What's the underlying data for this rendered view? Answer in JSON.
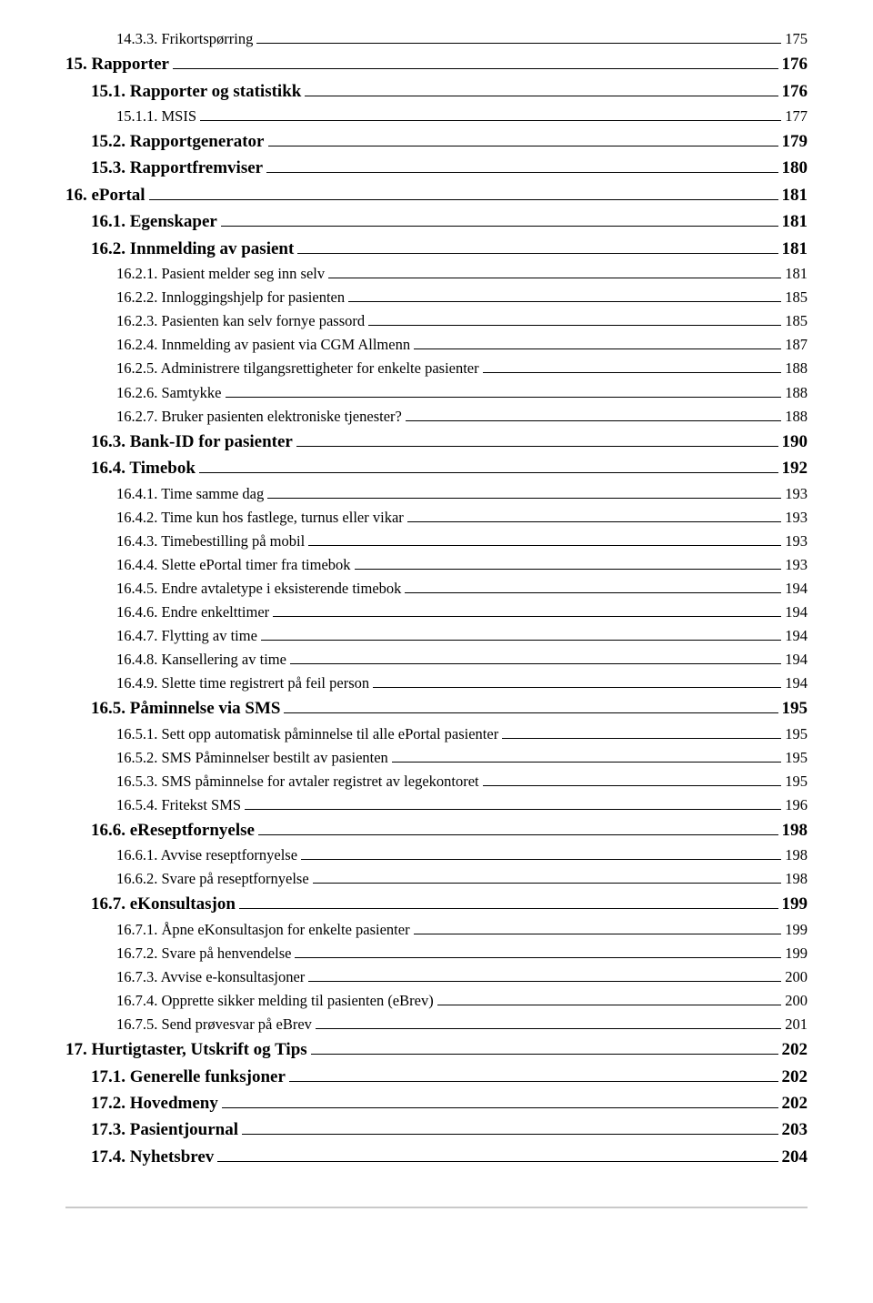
{
  "font": {
    "serif_family": "Times New Roman",
    "lvl0_pt": 14,
    "lvl1_pt": 14,
    "lvl2_pt": 12
  },
  "colors": {
    "text": "#000000",
    "background": "#ffffff",
    "footer_rule": "#c9c9c9",
    "leader": "#000000"
  },
  "entries": [
    {
      "lvl": 2,
      "label": "14.3.3. Frikortspørring",
      "page": "175"
    },
    {
      "lvl": 0,
      "label": "15. Rapporter",
      "page": "176"
    },
    {
      "lvl": 1,
      "label": "15.1. Rapporter og statistikk",
      "page": "176"
    },
    {
      "lvl": 2,
      "label": "15.1.1. MSIS",
      "page": "177"
    },
    {
      "lvl": 1,
      "label": "15.2. Rapportgenerator",
      "page": "179"
    },
    {
      "lvl": 1,
      "label": "15.3. Rapportfremviser",
      "page": "180"
    },
    {
      "lvl": 0,
      "label": "16. ePortal",
      "page": "181"
    },
    {
      "lvl": 1,
      "label": "16.1. Egenskaper",
      "page": "181"
    },
    {
      "lvl": 1,
      "label": "16.2. Innmelding av pasient",
      "page": "181"
    },
    {
      "lvl": 2,
      "label": "16.2.1. Pasient melder seg inn selv",
      "page": "181"
    },
    {
      "lvl": 2,
      "label": "16.2.2. Innloggingshjelp for pasienten",
      "page": "185"
    },
    {
      "lvl": 2,
      "label": "16.2.3. Pasienten kan selv fornye passord",
      "page": "185"
    },
    {
      "lvl": 2,
      "label": "16.2.4. Innmelding av pasient via CGM Allmenn",
      "page": "187"
    },
    {
      "lvl": 2,
      "label": "16.2.5. Administrere tilgangsrettigheter for enkelte pasienter",
      "page": "188"
    },
    {
      "lvl": 2,
      "label": "16.2.6. Samtykke",
      "page": "188"
    },
    {
      "lvl": 2,
      "label": "16.2.7. Bruker pasienten elektroniske tjenester?",
      "page": "188"
    },
    {
      "lvl": 1,
      "label": "16.3. Bank-ID for pasienter",
      "page": "190"
    },
    {
      "lvl": 1,
      "label": "16.4. Timebok",
      "page": "192"
    },
    {
      "lvl": 2,
      "label": "16.4.1. Time samme dag",
      "page": "193"
    },
    {
      "lvl": 2,
      "label": "16.4.2. Time kun hos fastlege, turnus eller vikar",
      "page": "193"
    },
    {
      "lvl": 2,
      "label": "16.4.3. Timebestilling på mobil",
      "page": "193"
    },
    {
      "lvl": 2,
      "label": "16.4.4. Slette ePortal timer fra timebok",
      "page": "193"
    },
    {
      "lvl": 2,
      "label": "16.4.5. Endre avtaletype i eksisterende timebok",
      "page": "194"
    },
    {
      "lvl": 2,
      "label": "16.4.6. Endre enkelttimer",
      "page": "194"
    },
    {
      "lvl": 2,
      "label": "16.4.7. Flytting av time",
      "page": "194"
    },
    {
      "lvl": 2,
      "label": "16.4.8. Kansellering av time",
      "page": "194"
    },
    {
      "lvl": 2,
      "label": "16.4.9. Slette time registrert på feil person",
      "page": "194"
    },
    {
      "lvl": 1,
      "label": "16.5. Påminnelse via SMS",
      "page": "195"
    },
    {
      "lvl": 2,
      "label": "16.5.1. Sett opp automatisk påminnelse til alle ePortal pasienter",
      "page": "195"
    },
    {
      "lvl": 2,
      "label": "16.5.2. SMS Påminnelser bestilt av pasienten",
      "page": "195"
    },
    {
      "lvl": 2,
      "label": "16.5.3. SMS påminnelse for avtaler registret av legekontoret",
      "page": "195"
    },
    {
      "lvl": 2,
      "label": "16.5.4. Fritekst SMS",
      "page": "196"
    },
    {
      "lvl": 1,
      "label": "16.6. eReseptfornyelse",
      "page": "198"
    },
    {
      "lvl": 2,
      "label": "16.6.1. Avvise reseptfornyelse",
      "page": "198"
    },
    {
      "lvl": 2,
      "label": "16.6.2. Svare på reseptfornyelse",
      "page": "198"
    },
    {
      "lvl": 1,
      "label": "16.7. eKonsultasjon",
      "page": "199"
    },
    {
      "lvl": 2,
      "label": "16.7.1. Åpne eKonsultasjon for enkelte pasienter",
      "page": "199"
    },
    {
      "lvl": 2,
      "label": "16.7.2. Svare på henvendelse",
      "page": "199"
    },
    {
      "lvl": 2,
      "label": "16.7.3. Avvise e-konsultasjoner",
      "page": "200"
    },
    {
      "lvl": 2,
      "label": "16.7.4. Opprette sikker melding til pasienten (eBrev)",
      "page": "200"
    },
    {
      "lvl": 2,
      "label": "16.7.5. Send prøvesvar på eBrev",
      "page": "201"
    },
    {
      "lvl": 0,
      "label": "17. Hurtigtaster, Utskrift og Tips",
      "page": "202"
    },
    {
      "lvl": 1,
      "label": "17.1. Generelle funksjoner",
      "page": "202"
    },
    {
      "lvl": 1,
      "label": "17.2. Hovedmeny",
      "page": "202"
    },
    {
      "lvl": 1,
      "label": "17.3. Pasientjournal",
      "page": "203"
    },
    {
      "lvl": 1,
      "label": "17.4. Nyhetsbrev",
      "page": "204"
    }
  ]
}
